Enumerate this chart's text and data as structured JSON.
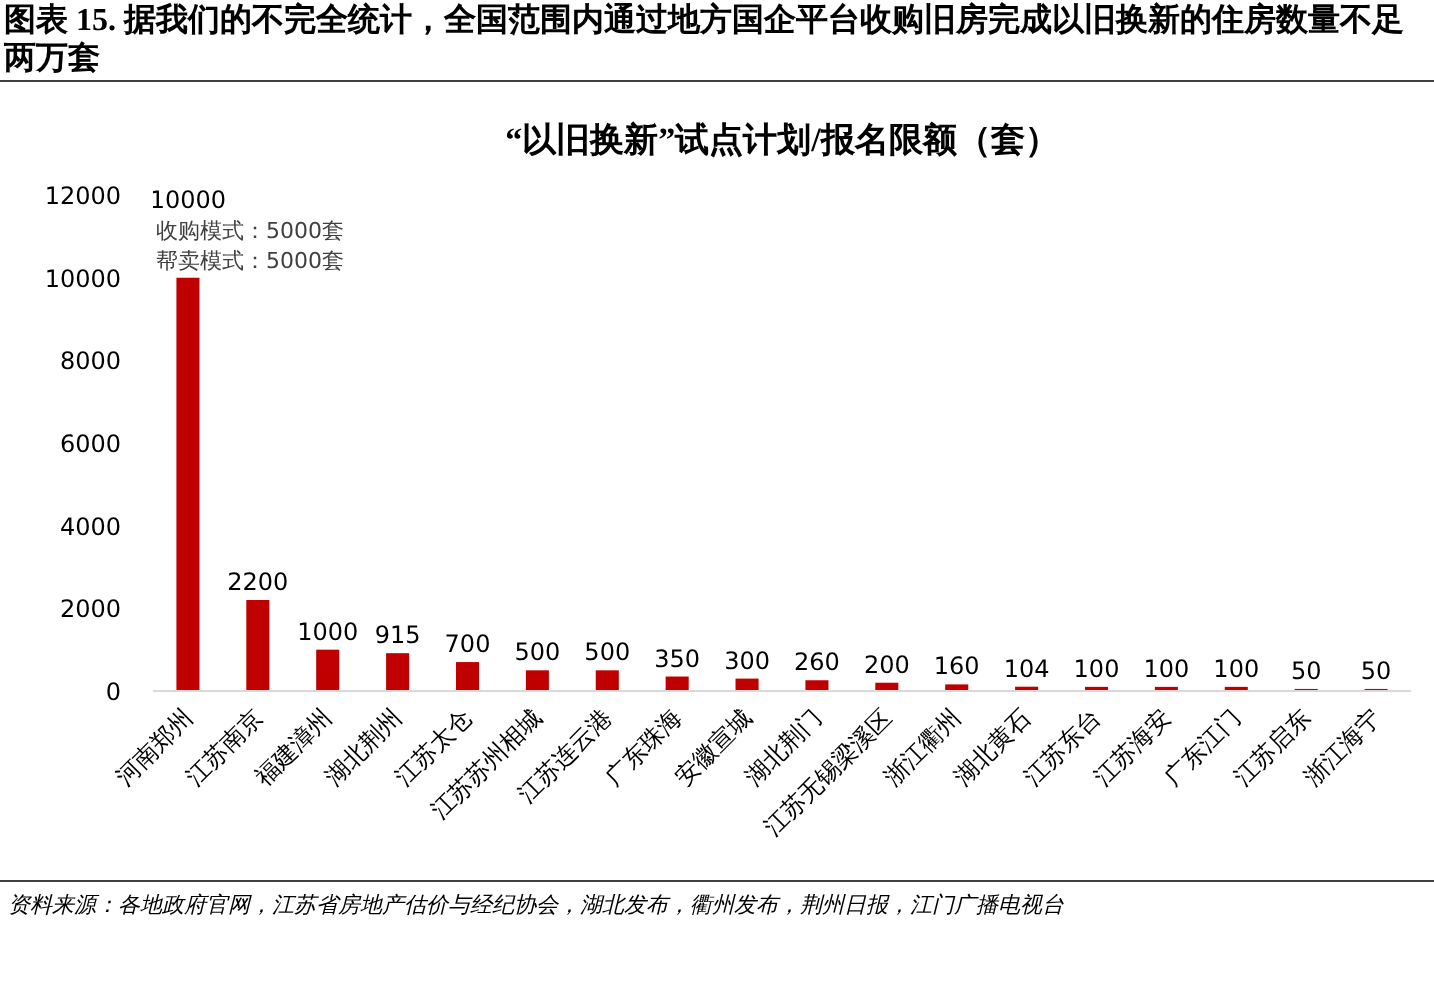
{
  "chart_data": {
    "type": "bar",
    "title": "图表 15. 据我们的不完全统计，全国范围内通过地方国企平台收购旧房完成以旧换新的住房数量不足两万套",
    "subtitle": "“以旧换新”试点计划/报名限额（套）",
    "categories": [
      "河南郑州",
      "江苏南京",
      "福建漳州",
      "湖北荆州",
      "江苏太仓",
      "江苏苏州相城",
      "江苏连云港",
      "广东珠海",
      "安徽宣城",
      "湖北荆门",
      "江苏无锡梁溪区",
      "浙江衢州",
      "湖北黄石",
      "江苏东台",
      "江苏海安",
      "广东江门",
      "江苏启东",
      "浙江海宁"
    ],
    "values": [
      10000,
      2200,
      1000,
      915,
      700,
      500,
      500,
      350,
      300,
      260,
      200,
      160,
      104,
      100,
      100,
      100,
      50,
      50
    ],
    "color": "#c00000",
    "ylim": [
      0,
      12000
    ],
    "yticks": [
      0,
      2000,
      4000,
      6000,
      8000,
      10000,
      12000
    ],
    "grid": false,
    "data_labels": true,
    "annotations": [
      {
        "text": "收购模式：5000套",
        "x": "河南郑州",
        "y": 10000
      },
      {
        "text": "帮卖模式：5000套",
        "x": "河南郑州",
        "y": 10000
      },
      "资料来源：各地政府官网，江苏省房地产估价与经纪协会，湖北发布，衢州发布，荆州日报，江门广播电视台"
    ]
  }
}
